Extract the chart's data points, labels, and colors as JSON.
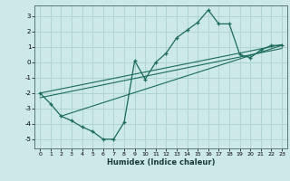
{
  "xlabel": "Humidex (Indice chaleur)",
  "bg_color": "#cce8e8",
  "grid_color": "#b0d4d4",
  "line_color": "#1a6b5a",
  "xlim": [
    -0.5,
    23.5
  ],
  "ylim": [
    -5.6,
    3.7
  ],
  "yticks": [
    -5,
    -4,
    -3,
    -2,
    -1,
    0,
    1,
    2,
    3
  ],
  "xticks": [
    0,
    1,
    2,
    3,
    4,
    5,
    6,
    7,
    8,
    9,
    10,
    11,
    12,
    13,
    14,
    15,
    16,
    17,
    18,
    19,
    20,
    21,
    22,
    23
  ],
  "series": [
    [
      0,
      -2.0
    ],
    [
      1,
      -2.7
    ],
    [
      2,
      -3.5
    ],
    [
      3,
      -3.8
    ],
    [
      4,
      -4.2
    ],
    [
      5,
      -4.5
    ],
    [
      6,
      -5.0
    ],
    [
      7,
      -5.0
    ],
    [
      8,
      -3.9
    ],
    [
      9,
      0.1
    ],
    [
      10,
      -1.1
    ],
    [
      11,
      0.0
    ],
    [
      12,
      0.6
    ],
    [
      13,
      1.6
    ],
    [
      14,
      2.1
    ],
    [
      15,
      2.6
    ],
    [
      16,
      3.4
    ],
    [
      17,
      2.5
    ],
    [
      18,
      2.5
    ],
    [
      19,
      0.5
    ],
    [
      20,
      0.3
    ],
    [
      21,
      0.8
    ],
    [
      22,
      1.1
    ],
    [
      23,
      1.1
    ]
  ],
  "regression_lines": [
    {
      "x0": 0,
      "y0": -2.0,
      "x1": 23,
      "y1": 1.15
    },
    {
      "x0": 0,
      "y0": -2.3,
      "x1": 23,
      "y1": 0.9
    },
    {
      "x0": 2,
      "y0": -3.5,
      "x1": 23,
      "y1": 1.1
    }
  ]
}
